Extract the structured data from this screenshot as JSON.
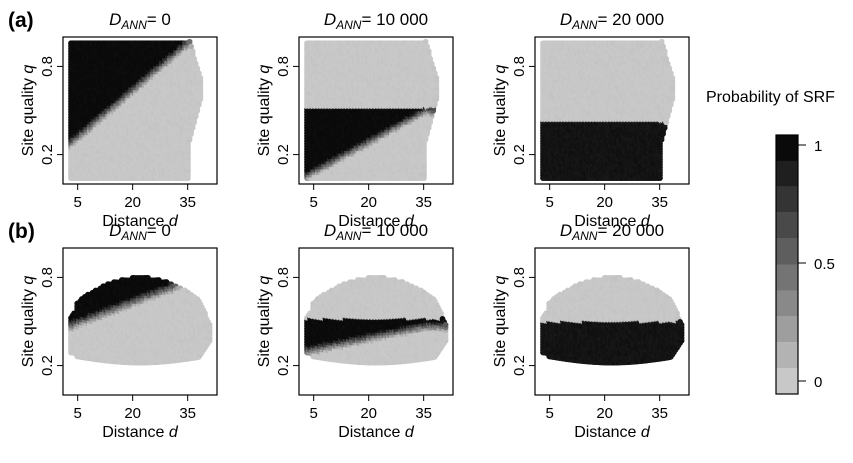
{
  "figure": {
    "colorbar": {
      "title": "Probability of SRF",
      "ticks": [
        "1",
        "0.5",
        "0"
      ],
      "range": [
        0,
        1
      ],
      "palette": {
        "low": "#c8c8c8",
        "high": "#0a0a0a"
      }
    }
  },
  "chart_data": [
    {
      "type": "heatmap",
      "row_label": "(a)",
      "title_prefix": "D",
      "title_sub": "ANN",
      "title_value": "= 0",
      "xlabel": "Distance",
      "xlabel_var": "d",
      "ylabel": "Site quality",
      "ylabel_var": "q",
      "xticks": [
        "5",
        "20",
        "35"
      ],
      "yticks": [
        "0.2",
        "0.8"
      ],
      "xlim": [
        1,
        43
      ],
      "ylim": [
        0,
        1
      ],
      "cloud": "uniform",
      "rule": "above_diagonal",
      "threshold": [
        0.27,
        0.97
      ]
    },
    {
      "type": "heatmap",
      "title_prefix": "D",
      "title_sub": "ANN",
      "title_value": "= 10 000",
      "xlabel": "Distance",
      "xlabel_var": "d",
      "ylabel": "Site quality",
      "ylabel_var": "q",
      "xticks": [
        "5",
        "20",
        "35"
      ],
      "yticks": [
        "0.2",
        "0.8"
      ],
      "xlim": [
        1,
        43
      ],
      "ylim": [
        0,
        1
      ],
      "cloud": "uniform",
      "rule": "below_band",
      "upper": 0.52,
      "lower": [
        0.05,
        0.5
      ]
    },
    {
      "type": "heatmap",
      "title_prefix": "D",
      "title_sub": "ANN",
      "title_value": "= 20 000",
      "xlabel": "Distance",
      "xlabel_var": "d",
      "ylabel": "Site quality",
      "ylabel_var": "q",
      "xticks": [
        "5",
        "20",
        "35"
      ],
      "yticks": [
        "0.2",
        "0.8"
      ],
      "xlim": [
        1,
        43
      ],
      "ylim": [
        0,
        1
      ],
      "cloud": "uniform",
      "rule": "below_flat",
      "upper": 0.42
    },
    {
      "type": "heatmap",
      "row_label": "(b)",
      "title_prefix": "D",
      "title_sub": "ANN",
      "title_value": "= 0",
      "xlabel": "Distance",
      "xlabel_var": "d",
      "ylabel": "Site quality",
      "ylabel_var": "q",
      "xticks": [
        "5",
        "20",
        "35"
      ],
      "yticks": [
        "0.2",
        "0.8"
      ],
      "xlim": [
        1,
        43
      ],
      "ylim": [
        0,
        1
      ],
      "cloud": "blob",
      "rule": "above_diagonal",
      "threshold": [
        0.47,
        0.78
      ]
    },
    {
      "type": "heatmap",
      "title_prefix": "D",
      "title_sub": "ANN",
      "title_value": "= 10 000",
      "xlabel": "Distance",
      "xlabel_var": "d",
      "ylabel": "Site quality",
      "ylabel_var": "q",
      "xticks": [
        "5",
        "20",
        "35"
      ],
      "yticks": [
        "0.2",
        "0.8"
      ],
      "xlim": [
        1,
        43
      ],
      "ylim": [
        0,
        1
      ],
      "cloud": "blob",
      "rule": "below_band",
      "upper": 0.52,
      "lower": [
        0.3,
        0.47
      ]
    },
    {
      "type": "heatmap",
      "title_prefix": "D",
      "title_sub": "ANN",
      "title_value": "= 20 000",
      "xlabel": "Distance",
      "xlabel_var": "d",
      "ylabel": "Site quality",
      "ylabel_var": "q",
      "xticks": [
        "5",
        "20",
        "35"
      ],
      "yticks": [
        "0.2",
        "0.8"
      ],
      "xlim": [
        1,
        43
      ],
      "ylim": [
        0,
        1
      ],
      "cloud": "blob",
      "rule": "below_flat",
      "upper": 0.5
    }
  ]
}
